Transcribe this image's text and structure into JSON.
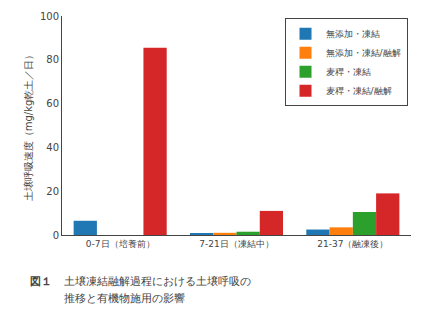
{
  "chart_data": {
    "type": "bar",
    "categories": [
      "0-7日（培養前）",
      "7-21日（凍結中）",
      "21-37（融凍後）"
    ],
    "series": [
      {
        "name": "無添加・凍結",
        "values": [
          6.5,
          0.5,
          2.5
        ]
      },
      {
        "name": "無添加・凍結/融解",
        "values": [
          0.0,
          1.0,
          3.5
        ]
      },
      {
        "name": "麦稈・凍結",
        "values": [
          0.0,
          1.5,
          10.5
        ]
      },
      {
        "name": "麦稈・凍結/融解",
        "values": [
          85.5,
          11.0,
          19.0
        ]
      }
    ],
    "ylabel": "土壌呼吸速度（mg/kg乾土／日）",
    "ylim": [
      0,
      100
    ],
    "yticks": [
      0,
      20,
      40,
      60,
      80,
      100
    ],
    "grid": false,
    "legend": "upper right",
    "annotations": [
      "図１",
      "土壌凍結融解過程における土壌呼吸の",
      "推移と有機物施用の影響"
    ]
  }
}
